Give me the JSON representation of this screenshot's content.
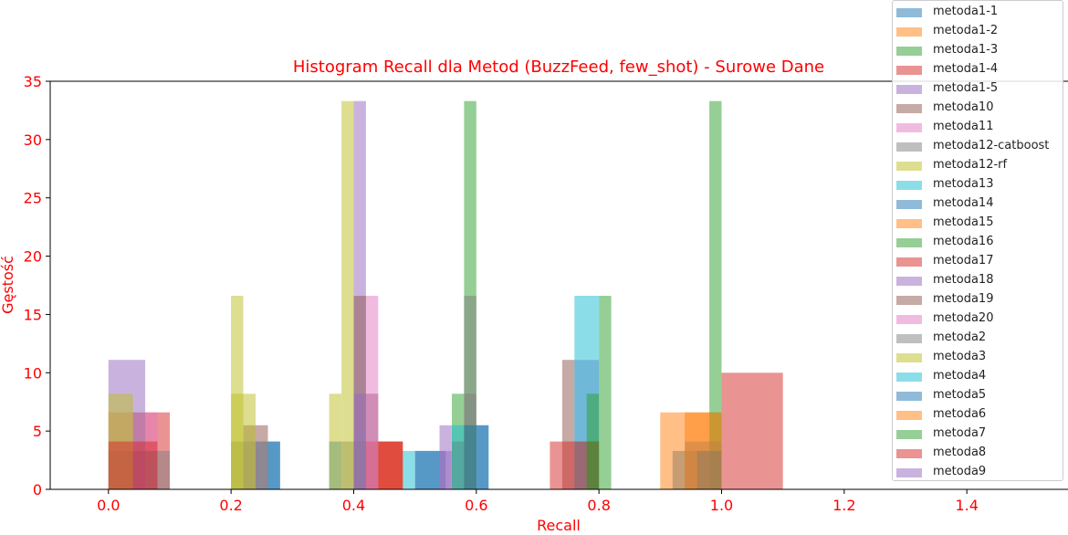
{
  "chart_data": {
    "type": "histogram",
    "title": "Histogram Recall dla Metod (BuzzFeed, few_shot) - Surowe Dane",
    "xlabel": "Recall",
    "ylabel": "Gęstość",
    "xlim": [
      -0.095,
      1.565
    ],
    "ylim": [
      0,
      35
    ],
    "xticks": [
      "0.0",
      "0.2",
      "0.4",
      "0.6",
      "0.8",
      "1.0",
      "1.2",
      "1.4"
    ],
    "yticks": [
      "0",
      "5",
      "10",
      "15",
      "20",
      "25",
      "30",
      "35"
    ],
    "text_color": "#ff0000",
    "legend_position": "upper right, outside plot top",
    "series": [
      {
        "name": "metoda1-1",
        "color": "#1f77b4",
        "bars": [
          {
            "x0": 0.0,
            "x1": 0.08,
            "y": 3.3
          },
          {
            "x0": 0.24,
            "x1": 0.28,
            "y": 4.1
          },
          {
            "x0": 0.36,
            "x1": 0.38,
            "y": 4.1
          },
          {
            "x0": 0.5,
            "x1": 0.55,
            "y": 3.3
          },
          {
            "x0": 0.6,
            "x1": 0.62,
            "y": 5.5
          },
          {
            "x0": 0.92,
            "x1": 1.0,
            "y": 3.3
          }
        ]
      },
      {
        "name": "metoda1-2",
        "color": "#ff7f0e",
        "bars": [
          {
            "x0": 0.0,
            "x1": 0.04,
            "y": 6.6
          },
          {
            "x0": 0.9,
            "x1": 1.0,
            "y": 6.6
          }
        ]
      },
      {
        "name": "metoda1-3",
        "color": "#2ca02c",
        "bars": [
          {
            "x0": 0.42,
            "x1": 0.44,
            "y": 8.2
          },
          {
            "x0": 0.56,
            "x1": 0.58,
            "y": 8.2
          },
          {
            "x0": 0.58,
            "x1": 0.6,
            "y": 33.3
          },
          {
            "x0": 0.8,
            "x1": 0.82,
            "y": 16.6
          },
          {
            "x0": 0.98,
            "x1": 1.0,
            "y": 33.3
          }
        ]
      },
      {
        "name": "metoda1-4",
        "color": "#d62728",
        "bars": [
          {
            "x0": 0.04,
            "x1": 0.1,
            "y": 6.6
          },
          {
            "x0": 1.0,
            "x1": 1.1,
            "y": 10.0
          }
        ]
      },
      {
        "name": "metoda1-5",
        "color": "#9467bd",
        "bars": [
          {
            "x0": 0.0,
            "x1": 0.06,
            "y": 11.1
          },
          {
            "x0": 0.4,
            "x1": 0.42,
            "y": 33.3
          },
          {
            "x0": 0.54,
            "x1": 0.56,
            "y": 5.5
          },
          {
            "x0": 0.76,
            "x1": 0.8,
            "y": 11.1
          }
        ]
      },
      {
        "name": "metoda10",
        "color": "#8c564b",
        "bars": [
          {
            "x0": 0.22,
            "x1": 0.26,
            "y": 5.5
          },
          {
            "x0": 0.4,
            "x1": 0.42,
            "y": 16.6
          },
          {
            "x0": 0.74,
            "x1": 0.76,
            "y": 11.1
          }
        ]
      },
      {
        "name": "metoda11",
        "color": "#e377c2",
        "bars": [
          {
            "x0": 0.42,
            "x1": 0.44,
            "y": 16.6
          },
          {
            "x0": 0.06,
            "x1": 0.08,
            "y": 6.6
          }
        ]
      },
      {
        "name": "metoda12-catboost",
        "color": "#7f7f7f",
        "bars": [
          {
            "x0": 0.58,
            "x1": 0.6,
            "y": 16.6
          },
          {
            "x0": 0.06,
            "x1": 0.1,
            "y": 3.3
          },
          {
            "x0": 0.2,
            "x1": 0.24,
            "y": 4.1
          },
          {
            "x0": 0.38,
            "x1": 0.42,
            "y": 4.1
          },
          {
            "x0": 0.76,
            "x1": 0.8,
            "y": 4.1
          },
          {
            "x0": 0.94,
            "x1": 1.0,
            "y": 4.1
          }
        ]
      },
      {
        "name": "metoda12-rf",
        "color": "#bcbd22",
        "bars": [
          {
            "x0": 0.36,
            "x1": 0.38,
            "y": 8.2
          },
          {
            "x0": 0.38,
            "x1": 0.4,
            "y": 33.3
          },
          {
            "x0": 0.0,
            "x1": 0.04,
            "y": 8.2
          }
        ]
      },
      {
        "name": "metoda13",
        "color": "#17becf",
        "bars": [
          {
            "x0": 0.48,
            "x1": 0.5,
            "y": 3.3
          },
          {
            "x0": 0.76,
            "x1": 0.8,
            "y": 16.6
          }
        ]
      },
      {
        "name": "metoda14",
        "color": "#1f77b4",
        "bars": [
          {
            "x0": 0.26,
            "x1": 0.28,
            "y": 4.1
          },
          {
            "x0": 0.5,
            "x1": 0.54,
            "y": 3.3
          },
          {
            "x0": 0.96,
            "x1": 1.0,
            "y": 3.3
          }
        ]
      },
      {
        "name": "metoda15",
        "color": "#ff7f0e",
        "bars": [
          {
            "x0": 0.44,
            "x1": 0.48,
            "y": 4.1
          }
        ]
      },
      {
        "name": "metoda16",
        "color": "#2ca02c",
        "bars": [
          {
            "x0": 0.58,
            "x1": 0.6,
            "y": 5.5
          },
          {
            "x0": 0.78,
            "x1": 0.8,
            "y": 8.2
          }
        ]
      },
      {
        "name": "metoda17",
        "color": "#d62728",
        "bars": [
          {
            "x0": 0.0,
            "x1": 0.08,
            "y": 4.1
          },
          {
            "x0": 0.42,
            "x1": 0.48,
            "y": 4.1
          },
          {
            "x0": 0.72,
            "x1": 0.8,
            "y": 4.1
          }
        ]
      },
      {
        "name": "metoda18",
        "color": "#9467bd",
        "bars": [
          {
            "x0": 0.4,
            "x1": 0.42,
            "y": 8.2
          }
        ]
      },
      {
        "name": "metoda19",
        "color": "#8c564b",
        "bars": [
          {
            "x0": 0.56,
            "x1": 0.58,
            "y": 4.1
          }
        ]
      },
      {
        "name": "metoda20",
        "color": "#e377c2",
        "bars": [
          {
            "x0": 0.42,
            "x1": 0.44,
            "y": 8.2
          }
        ]
      },
      {
        "name": "metoda2",
        "color": "#7f7f7f",
        "bars": [
          {
            "x0": 0.58,
            "x1": 0.6,
            "y": 8.2
          }
        ]
      },
      {
        "name": "metoda3",
        "color": "#bcbd22",
        "bars": [
          {
            "x0": 0.2,
            "x1": 0.22,
            "y": 16.6
          },
          {
            "x0": 0.2,
            "x1": 0.24,
            "y": 8.2
          }
        ]
      },
      {
        "name": "metoda4",
        "color": "#17becf",
        "bars": [
          {
            "x0": 0.56,
            "x1": 0.58,
            "y": 5.5
          }
        ]
      },
      {
        "name": "metoda5",
        "color": "#1f77b4",
        "bars": [
          {
            "x0": 0.58,
            "x1": 0.62,
            "y": 5.5
          }
        ]
      },
      {
        "name": "metoda6",
        "color": "#ff7f0e",
        "bars": [
          {
            "x0": 0.94,
            "x1": 1.0,
            "y": 6.6
          }
        ]
      },
      {
        "name": "metoda7",
        "color": "#2ca02c",
        "bars": [
          {
            "x0": 0.78,
            "x1": 0.8,
            "y": 4.1
          }
        ]
      },
      {
        "name": "metoda8",
        "color": "#d62728",
        "bars": [
          {
            "x0": 0.44,
            "x1": 0.48,
            "y": 4.1
          }
        ]
      },
      {
        "name": "metoda9",
        "color": "#9467bd",
        "bars": [
          {
            "x0": 0.54,
            "x1": 0.56,
            "y": 3.3
          }
        ]
      }
    ]
  }
}
